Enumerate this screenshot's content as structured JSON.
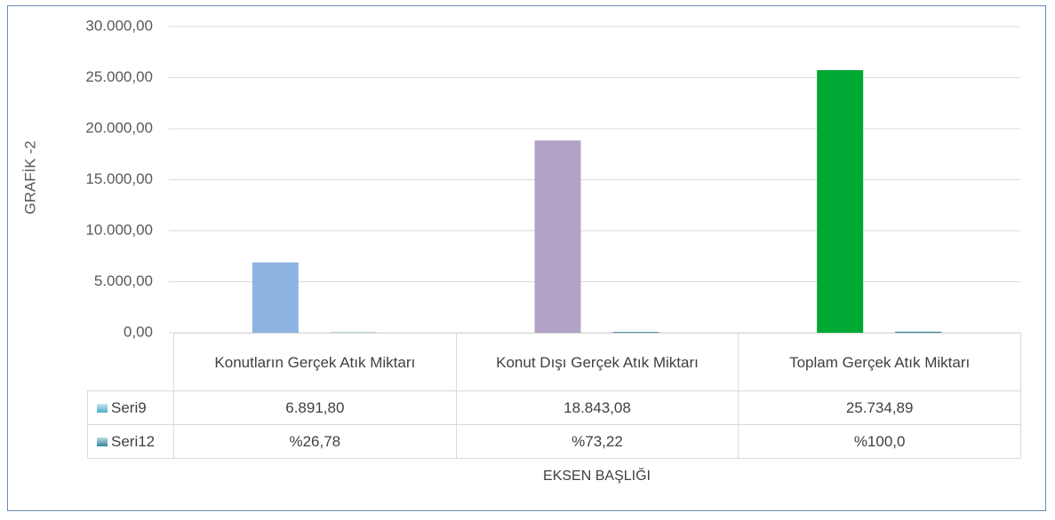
{
  "chart_data": {
    "type": "bar",
    "y_label": "GRAFİK -2",
    "x_label": "EKSEN BAŞLIĞI",
    "categories": [
      "Konutların Gerçek Atık Miktarı",
      "Konut Dışı Gerçek Atık Miktarı",
      "Toplam Gerçek Atık Miktarı"
    ],
    "series": [
      {
        "name": "Seri9",
        "color": "#4bacc6",
        "colors": [
          "#8db3e2",
          "#b3a2c7",
          "#00a933"
        ],
        "values": [
          6891.8,
          18843.08,
          25734.89
        ],
        "value_labels": [
          "6.891,80",
          "18.843,08",
          "25.734,89"
        ]
      },
      {
        "name": "Seri12",
        "color": "#31859c",
        "values": [
          26.78,
          73.22,
          100.0
        ],
        "value_labels": [
          "%26,78",
          "%73,22",
          "%100,0"
        ]
      }
    ],
    "ylim": [
      0,
      30000
    ],
    "yticks": [
      {
        "value": 0,
        "label": "0,00"
      },
      {
        "value": 5000,
        "label": "5.000,00"
      },
      {
        "value": 10000,
        "label": "10.000,00"
      },
      {
        "value": 15000,
        "label": "15.000,00"
      },
      {
        "value": 20000,
        "label": "20.000,00"
      },
      {
        "value": 25000,
        "label": "25.000,00"
      },
      {
        "value": 30000,
        "label": "30.000,00"
      }
    ],
    "grid": true
  }
}
